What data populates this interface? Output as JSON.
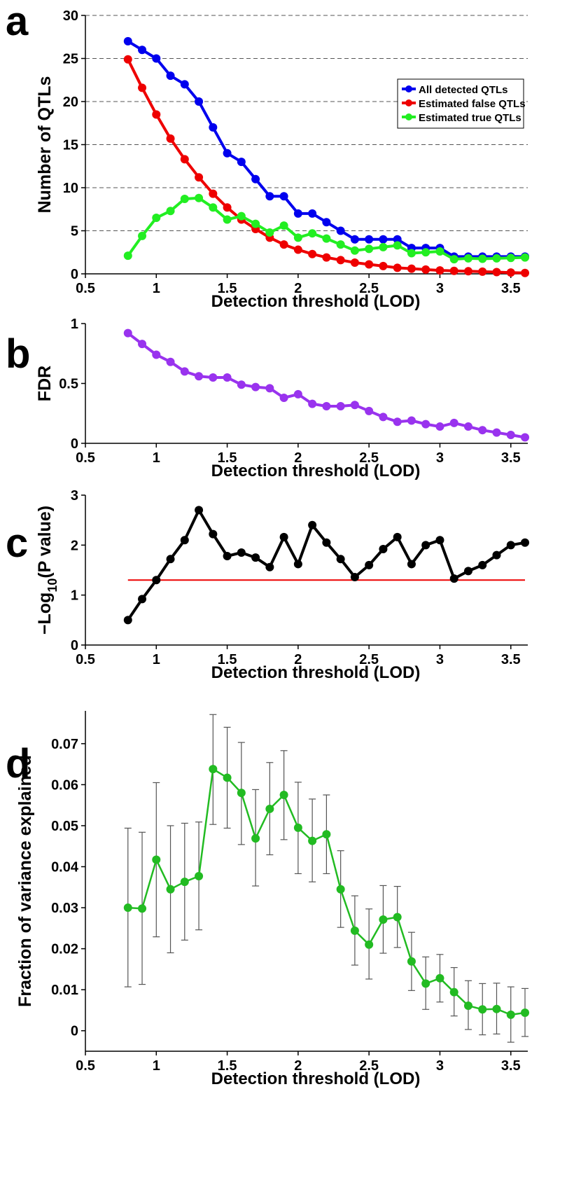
{
  "chart_data": [
    {
      "panel": "a",
      "type": "line",
      "xlabel": "Detection threshold (LOD)",
      "ylabel": "Number of QTLs",
      "xlim": [
        0.5,
        3.6
      ],
      "ylim": [
        0,
        30
      ],
      "xticks": [
        0.5,
        1,
        1.5,
        2,
        2.5,
        3,
        3.5
      ],
      "xtick_labels": [
        "0.5",
        "1",
        "1.5",
        "2",
        "2.5",
        "3",
        "3.5"
      ],
      "yticks": [
        0,
        5,
        10,
        15,
        20,
        25,
        30
      ],
      "ytick_labels": [
        "0",
        "5",
        "10",
        "15",
        "20",
        "25",
        "30"
      ],
      "grid": "horizontal dashed",
      "legend": "top-right",
      "x": [
        0.8,
        0.9,
        1.0,
        1.1,
        1.2,
        1.3,
        1.4,
        1.5,
        1.6,
        1.7,
        1.8,
        1.9,
        2.0,
        2.1,
        2.2,
        2.3,
        2.4,
        2.5,
        2.6,
        2.7,
        2.8,
        2.9,
        3.0,
        3.1,
        3.2,
        3.3,
        3.4,
        3.5,
        3.6
      ],
      "series": [
        {
          "name": "All detected QTLs",
          "color": "#0000ee",
          "values": [
            27,
            26,
            25,
            23,
            22,
            20,
            17,
            14,
            13,
            11,
            9,
            9,
            7,
            7,
            6,
            5,
            4,
            4,
            4,
            4,
            3,
            3,
            3,
            2,
            2,
            2,
            2,
            2,
            2
          ]
        },
        {
          "name": "Estimated false QTLs",
          "color": "#ee0000",
          "values": [
            24.9,
            21.6,
            18.5,
            15.7,
            13.3,
            11.2,
            9.3,
            7.7,
            6.3,
            5.2,
            4.2,
            3.4,
            2.8,
            2.3,
            1.9,
            1.6,
            1.3,
            1.1,
            0.9,
            0.7,
            0.6,
            0.5,
            0.4,
            0.35,
            0.3,
            0.25,
            0.2,
            0.15,
            0.1
          ]
        },
        {
          "name": "Estimated true QTLs",
          "color": "#22ee22",
          "values": [
            2.1,
            4.4,
            6.5,
            7.3,
            8.7,
            8.8,
            7.7,
            6.3,
            6.7,
            5.8,
            4.8,
            5.6,
            4.2,
            4.7,
            4.1,
            3.4,
            2.7,
            2.9,
            3.1,
            3.3,
            2.4,
            2.5,
            2.6,
            1.7,
            1.8,
            1.75,
            1.8,
            1.85,
            1.9
          ]
        }
      ]
    },
    {
      "panel": "b",
      "type": "line",
      "xlabel": "Detection threshold (LOD)",
      "ylabel": "FDR",
      "xlim": [
        0.5,
        3.6
      ],
      "ylim": [
        0,
        1
      ],
      "xticks": [
        0.5,
        1,
        1.5,
        2,
        2.5,
        3,
        3.5
      ],
      "xtick_labels": [
        "0.5",
        "1",
        "1.5",
        "2",
        "2.5",
        "3",
        "3.5"
      ],
      "yticks": [
        0,
        0.5,
        1
      ],
      "ytick_labels": [
        "0",
        "0.5",
        "1"
      ],
      "x": [
        0.8,
        0.9,
        1.0,
        1.1,
        1.2,
        1.3,
        1.4,
        1.5,
        1.6,
        1.7,
        1.8,
        1.9,
        2.0,
        2.1,
        2.2,
        2.3,
        2.4,
        2.5,
        2.6,
        2.7,
        2.8,
        2.9,
        3.0,
        3.1,
        3.2,
        3.3,
        3.4,
        3.5,
        3.6
      ],
      "series": [
        {
          "color": "#9933ee",
          "values": [
            0.92,
            0.83,
            0.74,
            0.68,
            0.6,
            0.56,
            0.55,
            0.55,
            0.49,
            0.47,
            0.46,
            0.38,
            0.41,
            0.33,
            0.31,
            0.31,
            0.32,
            0.27,
            0.22,
            0.18,
            0.19,
            0.16,
            0.14,
            0.17,
            0.14,
            0.11,
            0.09,
            0.07,
            0.05
          ]
        }
      ]
    },
    {
      "panel": "c",
      "type": "line",
      "xlabel": "Detection threshold (LOD)",
      "ylabel_main": "−Log",
      "ylabel_sub": "10",
      "ylabel_rest": "(P value)",
      "xlim": [
        0.5,
        3.6
      ],
      "ylim": [
        0,
        3
      ],
      "xticks": [
        0.5,
        1,
        1.5,
        2,
        2.5,
        3,
        3.5
      ],
      "xtick_labels": [
        "0.5",
        "1",
        "1.5",
        "2",
        "2.5",
        "3",
        "3.5"
      ],
      "yticks": [
        0,
        1,
        2,
        3
      ],
      "ytick_labels": [
        "0",
        "1",
        "2",
        "3"
      ],
      "reference_line": {
        "y": 1.3,
        "color": "#ee0000"
      },
      "x": [
        0.8,
        0.9,
        1.0,
        1.1,
        1.2,
        1.3,
        1.4,
        1.5,
        1.6,
        1.7,
        1.8,
        1.9,
        2.0,
        2.1,
        2.2,
        2.3,
        2.4,
        2.5,
        2.6,
        2.7,
        2.8,
        2.9,
        3.0,
        3.1,
        3.2,
        3.3,
        3.4,
        3.5,
        3.6
      ],
      "series": [
        {
          "color": "#000000",
          "values": [
            0.5,
            0.92,
            1.3,
            1.72,
            2.1,
            2.7,
            2.22,
            1.78,
            1.85,
            1.75,
            1.56,
            2.16,
            1.62,
            2.4,
            2.05,
            1.72,
            1.36,
            1.6,
            1.92,
            2.16,
            1.62,
            2.0,
            2.1,
            1.33,
            1.48,
            1.6,
            1.8,
            2.0,
            2.05
          ]
        }
      ]
    },
    {
      "panel": "d",
      "type": "line",
      "xlabel": "Detection threshold (LOD)",
      "ylabel": "Fraction of variance explained",
      "xlim": [
        0.5,
        3.6
      ],
      "ylim": [
        -0.005,
        0.078
      ],
      "xticks": [
        0.5,
        1,
        1.5,
        2,
        2.5,
        3,
        3.5
      ],
      "xtick_labels": [
        "0.5",
        "1",
        "1.5",
        "2",
        "2.5",
        "3",
        "3.5"
      ],
      "yticks": [
        0,
        0.01,
        0.02,
        0.03,
        0.04,
        0.05,
        0.06,
        0.07
      ],
      "ytick_labels": [
        "0",
        "0.01",
        "0.02",
        "0.03",
        "0.04",
        "0.05",
        "0.06",
        "0.07"
      ],
      "x": [
        0.8,
        0.9,
        1.0,
        1.1,
        1.2,
        1.3,
        1.4,
        1.5,
        1.6,
        1.7,
        1.8,
        1.9,
        2.0,
        2.1,
        2.2,
        2.3,
        2.4,
        2.5,
        2.6,
        2.7,
        2.8,
        2.9,
        3.0,
        3.1,
        3.2,
        3.3,
        3.4,
        3.5,
        3.6
      ],
      "series": [
        {
          "color": "#22bb22",
          "values": [
            0.03,
            0.0298,
            0.0417,
            0.0345,
            0.0363,
            0.0377,
            0.0638,
            0.0617,
            0.058,
            0.0469,
            0.0541,
            0.0575,
            0.0495,
            0.0463,
            0.0479,
            0.0345,
            0.0244,
            0.021,
            0.0271,
            0.0277,
            0.0169,
            0.0115,
            0.0128,
            0.0094,
            0.0061,
            0.0052,
            0.0053,
            0.0039,
            0.0044
          ],
          "err_low": [
            0.0107,
            0.0113,
            0.0229,
            0.019,
            0.0221,
            0.0246,
            0.0503,
            0.0494,
            0.0454,
            0.0353,
            0.0429,
            0.0466,
            0.0383,
            0.0363,
            0.0383,
            0.0252,
            0.016,
            0.0126,
            0.0189,
            0.0203,
            0.0098,
            0.0052,
            0.007,
            0.0036,
            0.0003,
            -0.001,
            -0.0008,
            -0.0028,
            -0.0014
          ],
          "err_high": [
            0.0494,
            0.0484,
            0.0605,
            0.05,
            0.0506,
            0.0509,
            0.0771,
            0.074,
            0.0703,
            0.0588,
            0.0654,
            0.0683,
            0.0606,
            0.0565,
            0.0575,
            0.0439,
            0.0329,
            0.0297,
            0.0354,
            0.0352,
            0.024,
            0.018,
            0.0186,
            0.0154,
            0.0122,
            0.0115,
            0.0116,
            0.0107,
            0.0103
          ]
        }
      ]
    }
  ],
  "panel_labels": [
    "a",
    "b",
    "c",
    "d"
  ]
}
